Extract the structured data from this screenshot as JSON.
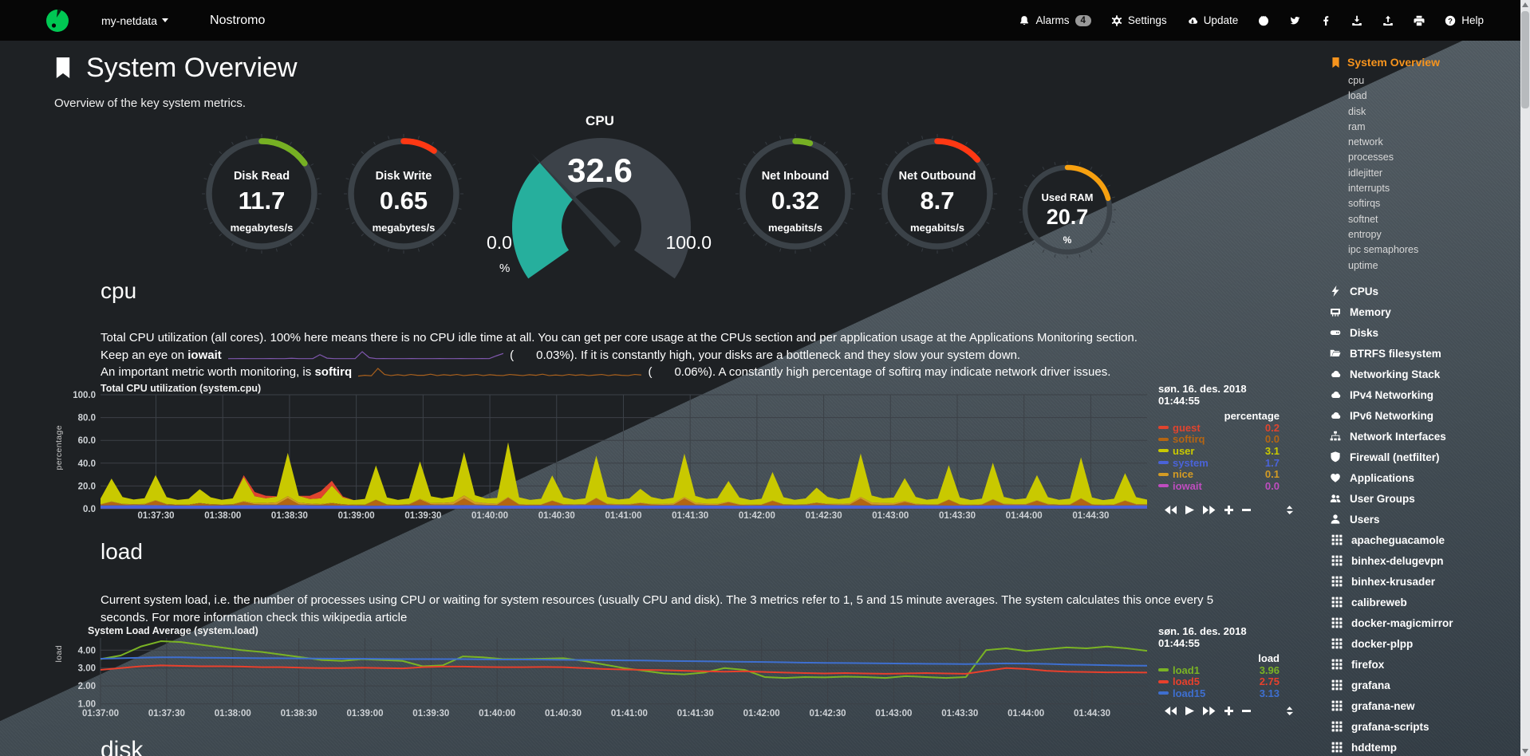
{
  "navbar": {
    "hostname": "my-netdata",
    "server_title": "Nostromo",
    "right": [
      {
        "icon": "bell",
        "label": "Alarms",
        "badge": "4"
      },
      {
        "icon": "gear",
        "label": "Settings"
      },
      {
        "icon": "cloud-download",
        "label": "Update"
      },
      {
        "icon": "github"
      },
      {
        "icon": "twitter"
      },
      {
        "icon": "facebook"
      },
      {
        "icon": "download"
      },
      {
        "icon": "upload"
      },
      {
        "icon": "print"
      },
      {
        "icon": "question",
        "label": "Help"
      }
    ]
  },
  "header": {
    "title": "System Overview",
    "subtitle": "Overview of the key system metrics."
  },
  "gauges": [
    {
      "kind": "ring",
      "title": "Disk Read",
      "value": "11.7",
      "units": "megabytes/s",
      "color": "#76b023",
      "frac": 0.152
    },
    {
      "kind": "ring",
      "title": "Disk Write",
      "value": "0.65",
      "units": "megabytes/s",
      "color": "#ff3813",
      "frac": 0.098
    },
    {
      "kind": "meter",
      "title": "CPU",
      "value": "32.6",
      "min": "0.0",
      "max": "100.0",
      "units": "%",
      "color": "#26af9d",
      "frac": 0.326
    },
    {
      "kind": "ring",
      "title": "Net Inbound",
      "value": "0.32",
      "units": "megabits/s",
      "color": "#76b023",
      "frac": 0.045
    },
    {
      "kind": "ring",
      "title": "Net Outbound",
      "value": "8.7",
      "units": "megabits/s",
      "color": "#ff3813",
      "frac": 0.138
    },
    {
      "kind": "ring",
      "title": "Used RAM",
      "value": "20.7",
      "units": "%",
      "color": "#f7a00f",
      "frac": 0.207
    }
  ],
  "cpu_section": {
    "heading": "cpu",
    "line1": "Total CPU utilization (all cores). 100% here means there is no CPU idle time at all. You can get per core usage at the CPUs section and per application usage at the Applications Monitoring section.",
    "line2_pre": "Keep an eye on ",
    "line2_bold": "iowait",
    "line2_open": "(",
    "line2_value": "0.03",
    "line2_post": "%). If it is constantly high, your disks are a bottleneck and they slow your system down.",
    "line3_pre": "An important metric worth monitoring, is ",
    "line3_bold": "softirq",
    "line3_open": "(",
    "line3_value": "0.06",
    "line3_post": "%). A constantly high percentage of softirq may indicate network driver issues.",
    "iowait_spark_color": "#7f57ad",
    "softirq_spark_color": "#a8601d",
    "iowait_spark": [
      0.02,
      0.02,
      0.03,
      0.02,
      0.02,
      0.02,
      0.03,
      0.02,
      0.02,
      0.05,
      0.02,
      0.02,
      0.02,
      0.35,
      0.06,
      0.02,
      0.02,
      0.02,
      0.02,
      0.6,
      0.1,
      0.02,
      0.03,
      0.02,
      0.02,
      0.02,
      0.03,
      0.02,
      0.02,
      0.02,
      0.03,
      0.02,
      0.02,
      0.03,
      0.02,
      0.02,
      0.03,
      0.02,
      0.25,
      0.45
    ],
    "softirq_spark": [
      0.2,
      0.35,
      0.25,
      1.6,
      0.5,
      0.3,
      0.45,
      0.3,
      0.5,
      0.35,
      0.35,
      0.55,
      0.3,
      0.45,
      0.35,
      0.5,
      0.3,
      0.4,
      0.5,
      0.3,
      0.45,
      0.35,
      0.3,
      0.5,
      0.4,
      0.3,
      0.45,
      0.35,
      0.55,
      0.3,
      0.4,
      0.3,
      0.5,
      0.35,
      0.45,
      0.3,
      0.4,
      0.5,
      0.3,
      0.45,
      0.35,
      0.3,
      0.5,
      0.4
    ]
  },
  "load_section": {
    "heading": "load",
    "desc": "Current system load, i.e. the number of processes using CPU or waiting for system resources (usually CPU and disk). The 3 metrics refer to 1, 5 and 15 minute averages. The system calculates this once every 5 seconds. For more information check this wikipedia article"
  },
  "disk_section": {
    "heading": "disk"
  },
  "chart_data": [
    {
      "id": "cpu",
      "type": "area",
      "stacked": true,
      "title": "Total CPU utilization (system.cpu)",
      "ylabel": "percentage",
      "legend_header": "percentage",
      "date": "søn. 16. des. 2018",
      "time": "01:44:55",
      "ylim": [
        0,
        100
      ],
      "grid": true,
      "legend_position": "right",
      "ytick_values": [
        0,
        20,
        40,
        60,
        80,
        100
      ],
      "ytick_labels": [
        "0.0",
        "20.0",
        "40.0",
        "60.0",
        "80.0",
        "100.0"
      ],
      "xticks": [
        "01:37:30",
        "01:38:00",
        "01:38:30",
        "01:39:00",
        "01:39:30",
        "01:40:00",
        "01:40:30",
        "01:41:00",
        "01:41:30",
        "01:42:00",
        "01:42:30",
        "01:43:00",
        "01:43:30",
        "01:44:00",
        "01:44:30"
      ],
      "x_first_frac": 0.053,
      "x_step_frac": 0.0638,
      "legend_order": [
        "guest",
        "softirq",
        "user",
        "system",
        "nice",
        "iowait"
      ],
      "series": [
        {
          "name": "iowait",
          "color": "#bf4dbf",
          "legend_value": "0.0",
          "values": [
            0.2,
            0.2,
            0.2
          ]
        },
        {
          "name": "system",
          "color": "#4a63d8",
          "legend_value": "1.7",
          "values": [
            2.8,
            3,
            2.6,
            2.9,
            3.1,
            2.7,
            2.5,
            2.9,
            3,
            2.6,
            2.8,
            3.1,
            2.7,
            2.9,
            2.5,
            2.8,
            3,
            2.7,
            2.9,
            2.6,
            3,
            2.8,
            2.6,
            2.9
          ]
        },
        {
          "name": "softirq",
          "color": "#b46513",
          "legend_value": "0.0",
          "values": [
            0.6,
            3,
            0.8,
            0.5,
            0.6,
            4,
            0.8,
            0.5,
            0.6,
            2,
            0.8,
            0.5,
            0.6,
            3,
            0.8,
            0.5,
            0.6,
            6,
            0.8,
            0.5,
            0.6,
            2,
            0.8,
            0.5,
            0.6,
            5,
            0.8,
            0.5,
            0.6,
            5,
            0.8,
            0.5,
            0.6,
            6,
            0.8,
            0.5,
            0.6,
            7,
            0.8,
            0.5,
            0.6,
            4,
            0.8,
            0.5,
            0.6,
            6,
            0.8,
            0.5,
            0.6,
            2,
            0.8,
            0.5,
            0.6,
            6,
            0.8,
            0.5,
            0.6,
            3,
            0.8,
            0.5,
            0.6,
            4,
            0.8,
            0.5,
            0.6,
            2,
            0.8,
            0.5,
            0.6,
            6,
            0.8,
            0.5,
            0.6,
            3,
            0.8,
            0.5,
            0.6,
            5,
            0.8,
            0.5,
            0.6,
            5,
            0.8,
            0.5,
            0.6,
            4,
            0.8,
            0.5,
            0.6,
            6,
            0.8,
            0.5,
            0.6,
            4,
            0.8,
            0.5
          ]
        },
        {
          "name": "nice",
          "color": "#d39b24",
          "legend_value": "0.1",
          "values": [
            0.4,
            0.5,
            0.3,
            0.4,
            2,
            0.4,
            0.3,
            0.5,
            2.5,
            0.4,
            0.3,
            0.4,
            0.5,
            1.5,
            0.4,
            0.3,
            0.4,
            2,
            0.4,
            0.3,
            0.5,
            0.4,
            0.3,
            0.4
          ]
        },
        {
          "name": "user",
          "color": "#c9c900",
          "legend_value": "3.1",
          "values": [
            5,
            20,
            6,
            4,
            5,
            22,
            6,
            4,
            5,
            12,
            6,
            4,
            5,
            21,
            6,
            4,
            5,
            38,
            6,
            4,
            5,
            15,
            6,
            4,
            5,
            30,
            6,
            4,
            5,
            33,
            6,
            4,
            5,
            38,
            6,
            4,
            5,
            48,
            6,
            4,
            5,
            22,
            6,
            4,
            5,
            37,
            6,
            4,
            5,
            12,
            6,
            4,
            5,
            38,
            6,
            4,
            5,
            18,
            6,
            4,
            5,
            25,
            6,
            4,
            5,
            13,
            6,
            4,
            5,
            38,
            6,
            4,
            5,
            20,
            6,
            4,
            5,
            30,
            6,
            4,
            5,
            32,
            6,
            4,
            5,
            22,
            6,
            4,
            5,
            36,
            6,
            4,
            5,
            24,
            6,
            4
          ]
        },
        {
          "name": "guest",
          "color": "#e0442e",
          "legend_value": "0.2",
          "values": [
            0,
            0,
            0,
            0,
            0,
            0,
            0,
            4,
            0,
            0,
            7,
            0,
            0,
            0,
            0,
            0,
            0,
            0,
            0,
            0,
            0,
            0,
            0,
            0,
            0,
            0,
            0,
            0,
            0,
            0,
            0,
            0,
            0,
            0,
            0,
            0,
            0,
            0,
            0,
            0,
            0,
            0,
            0,
            0,
            0,
            0,
            0,
            0
          ]
        }
      ]
    },
    {
      "id": "load",
      "type": "line",
      "stacked": false,
      "title": "System Load Average (system.load)",
      "ylabel": "load",
      "legend_header": "load",
      "date": "søn. 16. des. 2018",
      "time": "01:44:55",
      "ylim": [
        0.85,
        4.68
      ],
      "grid": true,
      "legend_position": "right",
      "ytick_values": [
        1,
        2,
        3,
        4
      ],
      "ytick_labels": [
        "1.00",
        "2.00",
        "3.00",
        "4.00"
      ],
      "xticks": [
        "01:37:00",
        "01:37:30",
        "01:38:00",
        "01:38:30",
        "01:39:00",
        "01:39:30",
        "01:40:00",
        "01:40:30",
        "01:41:00",
        "01:41:30",
        "01:42:00",
        "01:42:30",
        "01:43:00",
        "01:43:30",
        "01:44:00",
        "01:44:30"
      ],
      "x_first_frac": 0.0,
      "x_step_frac": 0.06316,
      "legend_order": [
        "load1",
        "load5",
        "load15"
      ],
      "series": [
        {
          "name": "load1",
          "color": "#7ab324",
          "legend_value": "3.96",
          "values": [
            3.5,
            3.7,
            4.2,
            4.5,
            4.45,
            4.3,
            4.15,
            4.0,
            3.9,
            3.75,
            3.6,
            3.45,
            3.4,
            3.5,
            3.45,
            3.4,
            3.1,
            3.15,
            3.65,
            3.6,
            3.5,
            3.5,
            3.52,
            3.55,
            3.4,
            3.2,
            3.0,
            2.85,
            2.7,
            2.65,
            2.75,
            3.0,
            2.9,
            2.5,
            2.45,
            2.5,
            2.48,
            2.52,
            2.5,
            2.45,
            2.55,
            2.5,
            2.45,
            2.5,
            4.0,
            4.1,
            3.95,
            4.05,
            4.15,
            4.1,
            4.2,
            4.1,
            3.96
          ]
        },
        {
          "name": "load5",
          "color": "#e8402c",
          "legend_value": "2.75",
          "values": [
            2.9,
            3.0,
            3.1,
            3.15,
            3.12,
            3.1,
            3.1,
            3.08,
            3.05,
            3.05,
            3.02,
            3.0,
            3.0,
            3.02,
            3.0,
            2.98,
            3.05,
            3.08,
            3.08,
            3.06,
            3.05,
            3.05,
            3.06,
            3.05,
            3.0,
            2.95,
            2.92,
            2.9,
            2.88,
            2.85,
            2.82,
            2.8,
            2.82,
            2.78,
            2.75,
            2.72,
            2.7,
            2.72,
            2.7,
            2.68,
            2.7,
            2.72,
            2.7,
            2.68,
            2.85,
            3.0,
            2.95,
            2.85,
            2.8,
            2.78,
            2.76,
            2.76,
            2.75
          ]
        },
        {
          "name": "load15",
          "color": "#3e6fd0",
          "legend_value": "3.13",
          "values": [
            3.52,
            3.55,
            3.58,
            3.6,
            3.6,
            3.58,
            3.57,
            3.56,
            3.55,
            3.55,
            3.54,
            3.53,
            3.52,
            3.52,
            3.51,
            3.5,
            3.5,
            3.5,
            3.5,
            3.49,
            3.48,
            3.48,
            3.47,
            3.46,
            3.45,
            3.44,
            3.43,
            3.42,
            3.4,
            3.39,
            3.38,
            3.36,
            3.35,
            3.34,
            3.32,
            3.3,
            3.29,
            3.28,
            3.27,
            3.26,
            3.25,
            3.24,
            3.23,
            3.22,
            3.24,
            3.26,
            3.25,
            3.23,
            3.2,
            3.18,
            3.16,
            3.14,
            3.13
          ]
        }
      ]
    }
  ],
  "sidebar": {
    "header": "System Overview",
    "accent_color": "#f7941d",
    "subitems": [
      "cpu",
      "load",
      "disk",
      "ram",
      "network",
      "processes",
      "idlejitter",
      "interrupts",
      "softirqs",
      "softnet",
      "entropy",
      "ipc semaphores",
      "uptime"
    ],
    "sections": [
      {
        "icon": "bolt",
        "label": "CPUs"
      },
      {
        "icon": "memory",
        "label": "Memory"
      },
      {
        "icon": "hdd",
        "label": "Disks"
      },
      {
        "icon": "folder",
        "label": "BTRFS filesystem"
      },
      {
        "icon": "cloud",
        "label": "Networking Stack"
      },
      {
        "icon": "cloud",
        "label": "IPv4 Networking"
      },
      {
        "icon": "cloud",
        "label": "IPv6 Networking"
      },
      {
        "icon": "sitemap",
        "label": "Network Interfaces"
      },
      {
        "icon": "shield",
        "label": "Firewall (netfilter)"
      },
      {
        "icon": "heart",
        "label": "Applications"
      },
      {
        "icon": "users",
        "label": "User Groups"
      },
      {
        "icon": "user",
        "label": "Users"
      }
    ],
    "apps": [
      "apacheguacamole",
      "binhex-delugevpn",
      "binhex-krusader",
      "calibreweb",
      "docker-magicmirror",
      "docker-plpp",
      "firefox",
      "grafana",
      "grafana-new",
      "grafana-scripts",
      "hddtemp"
    ]
  }
}
